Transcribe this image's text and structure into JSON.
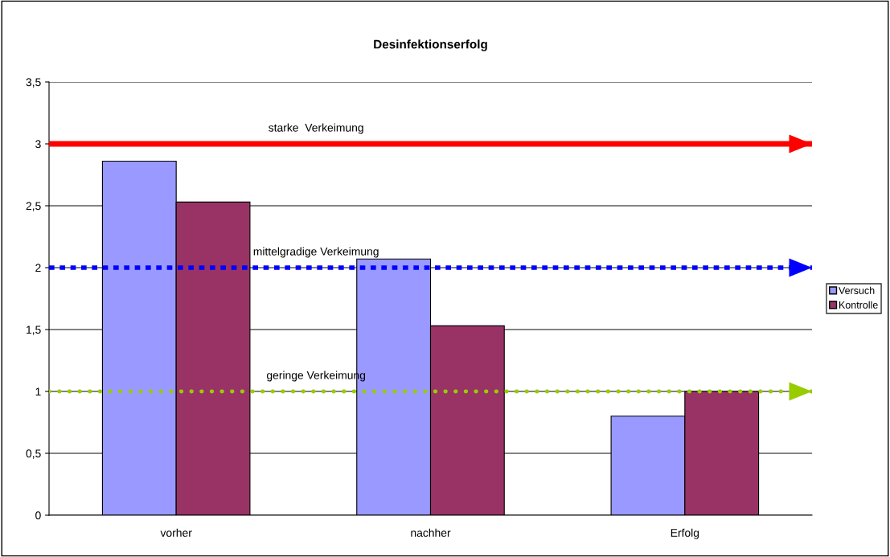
{
  "chart_data": {
    "type": "bar",
    "title": "Desinfektionserfolg",
    "categories": [
      "vorher",
      "nachher",
      "Erfolg"
    ],
    "series": [
      {
        "name": "Versuch",
        "color": "#9999ff",
        "values": [
          2.86,
          2.07,
          0.8
        ]
      },
      {
        "name": "Kontrolle",
        "color": "#993366",
        "values": [
          2.53,
          1.53,
          1.0
        ]
      }
    ],
    "ylim": [
      0,
      3.5
    ],
    "yticks": [
      0,
      {
        "value": 0.5,
        "label": "0,5"
      },
      1,
      {
        "value": 1.5,
        "label": "1,5"
      },
      2,
      {
        "value": 2.5,
        "label": "2,5"
      },
      3,
      {
        "value": 3.5,
        "label": "3,5"
      }
    ],
    "grid": "y",
    "legend": "right",
    "ref_lines": [
      {
        "axis": "y",
        "value": 3,
        "label": "starke  Verkeimung",
        "color": "#ff0000",
        "line_style": "solid"
      },
      {
        "axis": "y",
        "value": 2,
        "label": "mittelgradige Verkeimung",
        "color": "#0000ff",
        "line_style": "dashed"
      },
      {
        "axis": "y",
        "value": 1,
        "label": "geringe Verkeimung",
        "color": "#99cc00",
        "line_style": "dotted"
      }
    ]
  }
}
